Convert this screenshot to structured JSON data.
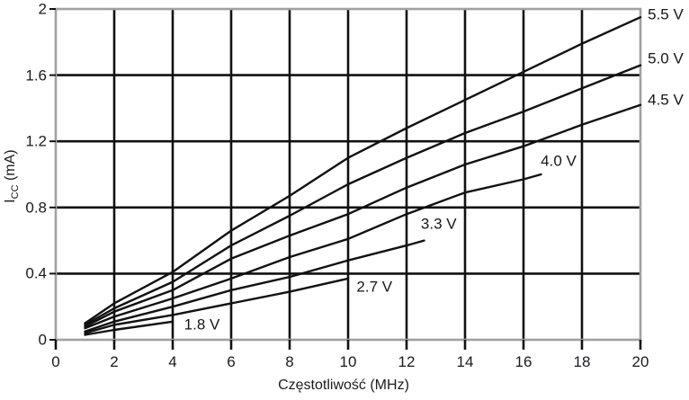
{
  "figure": {
    "background": "#ffffff",
    "curve_color": "#111111",
    "grid_color": "#111111",
    "border_color": "#a0a0a0",
    "tick_color": "#111111",
    "text_color": "#1b1b1f"
  },
  "chart_data": {
    "type": "line",
    "title": "",
    "xlabel": "Częstotliwość (MHz)",
    "ylabel_main": "I",
    "ylabel_sub": "CC",
    "ylabel_unit": " (mA)",
    "xlim": [
      0,
      20
    ],
    "ylim": [
      0,
      2
    ],
    "x_ticks": [
      0,
      2,
      4,
      6,
      8,
      10,
      12,
      14,
      16,
      18,
      20
    ],
    "x_tick_labels": [
      "0",
      "2",
      "4",
      "6",
      "8",
      "10",
      "12",
      "14",
      "16",
      "18",
      "20"
    ],
    "y_ticks": [
      0,
      0.4,
      0.8,
      1.2,
      1.6,
      2
    ],
    "y_tick_labels": [
      "0",
      "0.4",
      "0.8",
      "1.2",
      "1.6",
      "2"
    ],
    "grid": true,
    "legend_position": "inline-curve-labels",
    "series": [
      {
        "name": "5.5 V",
        "points": [
          [
            1,
            0.1
          ],
          [
            2,
            0.22
          ],
          [
            4,
            0.41
          ],
          [
            6,
            0.66
          ],
          [
            8,
            0.87
          ],
          [
            10,
            1.1
          ],
          [
            12,
            1.28
          ],
          [
            14,
            1.45
          ],
          [
            16,
            1.62
          ],
          [
            18,
            1.79
          ],
          [
            20,
            1.95
          ]
        ],
        "label_anchor": [
          20.25,
          1.97
        ],
        "label_align": "start"
      },
      {
        "name": "5.0 V",
        "points": [
          [
            1,
            0.09
          ],
          [
            2,
            0.19
          ],
          [
            4,
            0.35
          ],
          [
            6,
            0.57
          ],
          [
            8,
            0.75
          ],
          [
            10,
            0.94
          ],
          [
            12,
            1.1
          ],
          [
            14,
            1.25
          ],
          [
            16,
            1.38
          ],
          [
            18,
            1.52
          ],
          [
            20,
            1.66
          ]
        ],
        "label_anchor": [
          20.25,
          1.7
        ],
        "label_align": "start"
      },
      {
        "name": "4.5 V",
        "points": [
          [
            1,
            0.08
          ],
          [
            2,
            0.17
          ],
          [
            4,
            0.3
          ],
          [
            6,
            0.49
          ],
          [
            8,
            0.63
          ],
          [
            10,
            0.76
          ],
          [
            12,
            0.92
          ],
          [
            14,
            1.06
          ],
          [
            16,
            1.17
          ],
          [
            18,
            1.3
          ],
          [
            20,
            1.42
          ]
        ],
        "label_anchor": [
          20.25,
          1.45
        ],
        "label_align": "start"
      },
      {
        "name": "4.0 V",
        "points": [
          [
            1,
            0.07
          ],
          [
            2,
            0.14
          ],
          [
            4,
            0.25
          ],
          [
            6,
            0.37
          ],
          [
            8,
            0.5
          ],
          [
            10,
            0.61
          ],
          [
            12,
            0.76
          ],
          [
            14,
            0.89
          ],
          [
            16,
            0.97
          ],
          [
            16.6,
            1.0
          ]
        ],
        "label_anchor": [
          17.2,
          1.08
        ],
        "label_align": "middle"
      },
      {
        "name": "3.3 V",
        "points": [
          [
            1,
            0.05
          ],
          [
            2,
            0.11
          ],
          [
            4,
            0.2
          ],
          [
            6,
            0.3
          ],
          [
            8,
            0.38
          ],
          [
            10,
            0.48
          ],
          [
            12,
            0.57
          ],
          [
            12.6,
            0.6
          ]
        ],
        "label_anchor": [
          13.1,
          0.7
        ],
        "label_align": "middle"
      },
      {
        "name": "2.7 V",
        "points": [
          [
            1,
            0.04
          ],
          [
            2,
            0.09
          ],
          [
            4,
            0.15
          ],
          [
            6,
            0.22
          ],
          [
            8,
            0.29
          ],
          [
            10,
            0.37
          ]
        ],
        "label_anchor": [
          10.9,
          0.32
        ],
        "label_align": "middle"
      },
      {
        "name": "1.8 V",
        "points": [
          [
            1,
            0.03
          ],
          [
            2,
            0.06
          ],
          [
            4,
            0.11
          ]
        ],
        "label_anchor": [
          5.0,
          0.09
        ],
        "label_align": "middle"
      }
    ]
  }
}
